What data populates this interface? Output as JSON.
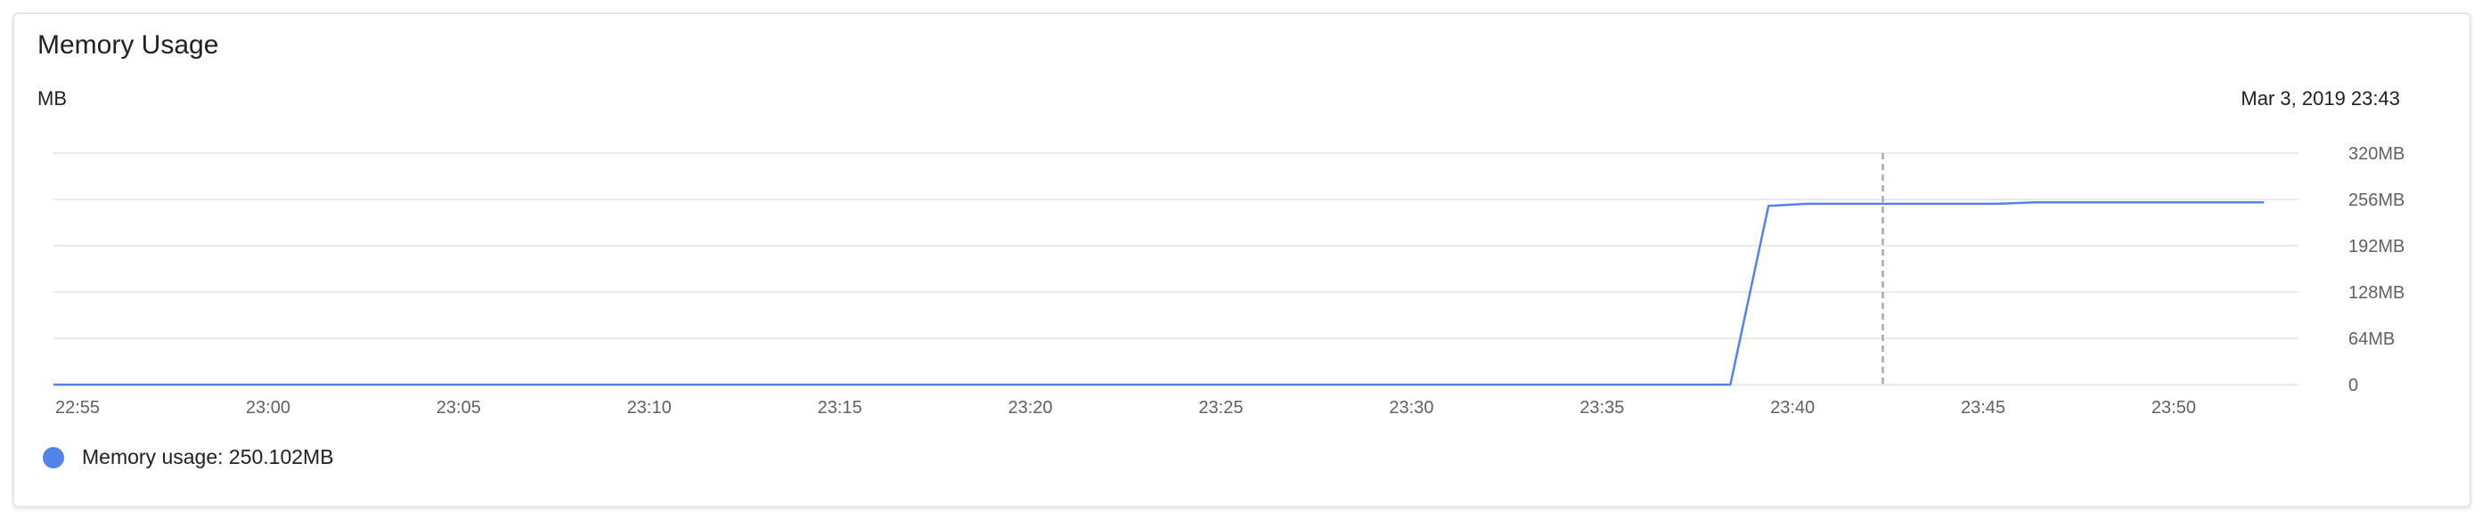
{
  "card": {
    "title": "Memory Usage",
    "unit_label": "MB",
    "cursor_datetime": "Mar 3, 2019 23:43"
  },
  "legend": {
    "label": "Memory usage: 250.102MB",
    "color": "#5382e8"
  },
  "colors": {
    "line": "#5382e8",
    "grid": "#e3e3e3",
    "cursor": "#a8a8a8",
    "tick_text": "#616161"
  },
  "chart_data": {
    "type": "line",
    "title": "Memory Usage",
    "xlabel": "",
    "ylabel": "MB",
    "x_ticks": [
      "22:55",
      "23:00",
      "23:05",
      "23:10",
      "23:15",
      "23:20",
      "23:25",
      "23:30",
      "23:35",
      "23:40",
      "23:45",
      "23:50"
    ],
    "y_ticks": [
      "0",
      "64MB",
      "128MB",
      "192MB",
      "256MB",
      "320MB"
    ],
    "y_tick_values": [
      0,
      64,
      128,
      192,
      256,
      320
    ],
    "xlim": [
      "22:55",
      "23:55"
    ],
    "ylim": [
      0,
      320
    ],
    "grid": true,
    "cursor_time": "23:43",
    "series": [
      {
        "name": "Memory usage",
        "x": [
          "22:55",
          "23:39",
          "23:40",
          "23:41",
          "23:46",
          "23:47",
          "23:53"
        ],
        "values": [
          0,
          0,
          247,
          250,
          250,
          252,
          252
        ]
      }
    ]
  }
}
